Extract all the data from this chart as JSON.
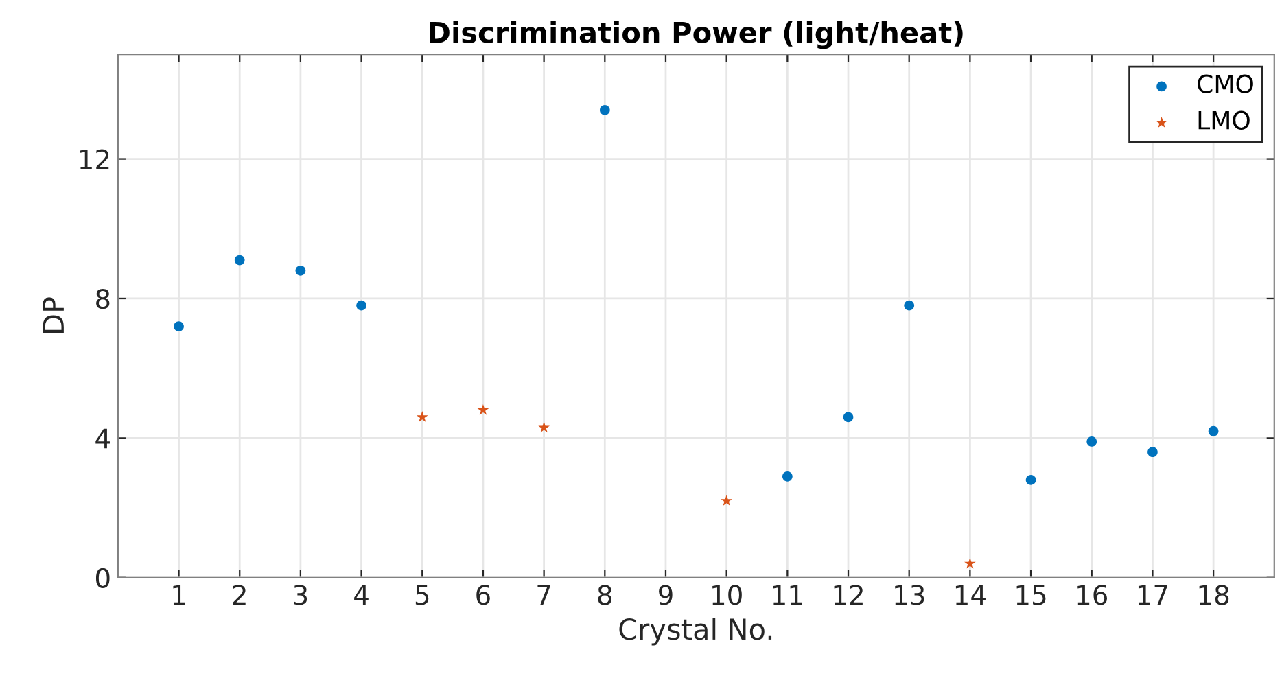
{
  "chart_data": {
    "type": "scatter",
    "title": "Discrimination Power (light/heat)",
    "xlabel": "Crystal No.",
    "ylabel": "DP",
    "xlim": [
      0,
      19
    ],
    "xticks": [
      1,
      2,
      3,
      4,
      5,
      6,
      7,
      8,
      9,
      10,
      11,
      12,
      13,
      14,
      15,
      16,
      17,
      18
    ],
    "ylim": [
      0,
      15
    ],
    "yticks": [
      0,
      4,
      8,
      12
    ],
    "grid": true,
    "legend": "top right",
    "series": [
      {
        "name": "CMO",
        "color": "#0072bd",
        "marker": "circle",
        "x": [
          1,
          2,
          3,
          4,
          8,
          11,
          12,
          13,
          15,
          16,
          17,
          18
        ],
        "values": [
          7.2,
          9.1,
          8.8,
          7.8,
          13.4,
          2.9,
          4.6,
          7.8,
          2.8,
          3.9,
          3.6,
          4.2
        ]
      },
      {
        "name": "LMO",
        "color": "#d95319",
        "marker": "star",
        "x": [
          5,
          6,
          7,
          10,
          14
        ],
        "values": [
          4.6,
          4.8,
          4.3,
          2.2,
          0.4
        ]
      }
    ]
  }
}
